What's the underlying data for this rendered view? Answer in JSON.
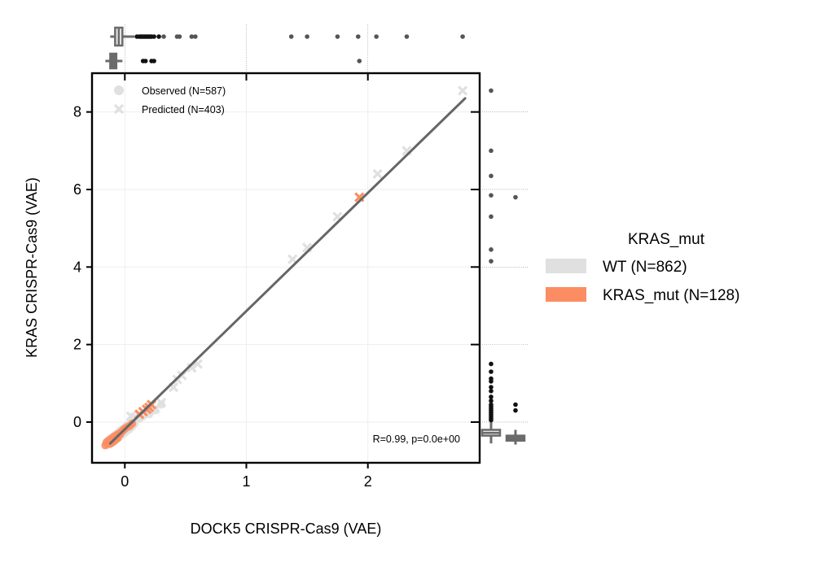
{
  "chart_data": {
    "type": "scatter",
    "xlabel": "DOCK5 CRISPR-Cas9 (VAE)",
    "ylabel": "KRAS CRISPR-Cas9 (VAE)",
    "xlim": [
      -0.27,
      2.92
    ],
    "ylim": [
      -1.05,
      9.0
    ],
    "xticks": [
      0,
      1,
      2
    ],
    "yticks": [
      0,
      2,
      4,
      6,
      8
    ],
    "marker_legend": [
      {
        "label": "Observed (N=587)",
        "marker": "circle"
      },
      {
        "label": "Predicted (N=403)",
        "marker": "x"
      }
    ],
    "hue_legend": {
      "title": "KRAS_mut",
      "entries": [
        {
          "label": "WT (N=862)",
          "color": "#e0e0e0"
        },
        {
          "label": "KRAS_mut (N=128)",
          "color": "#fc8d62"
        }
      ]
    },
    "annotation": "R=0.99, p=0.0e+00",
    "regression_line": {
      "x": [
        -0.12,
        2.8
      ],
      "y": [
        -0.55,
        8.35
      ],
      "color": "#666666"
    },
    "series": [
      {
        "name": "WT Observed",
        "marker": "circle",
        "color": "#e0e0e0",
        "points": [
          [
            -0.15,
            -0.55
          ],
          [
            -0.14,
            -0.48
          ],
          [
            -0.13,
            -0.5
          ],
          [
            -0.12,
            -0.42
          ],
          [
            -0.11,
            -0.46
          ],
          [
            -0.1,
            -0.38
          ],
          [
            -0.09,
            -0.4
          ],
          [
            -0.08,
            -0.33
          ],
          [
            -0.07,
            -0.36
          ],
          [
            -0.06,
            -0.28
          ],
          [
            -0.05,
            -0.3
          ],
          [
            -0.04,
            -0.22
          ],
          [
            -0.03,
            -0.26
          ],
          [
            -0.02,
            -0.18
          ],
          [
            -0.01,
            -0.2
          ],
          [
            0.0,
            -0.14
          ],
          [
            0.01,
            -0.1
          ],
          [
            0.02,
            -0.15
          ],
          [
            0.03,
            -0.06
          ],
          [
            0.05,
            -0.02
          ],
          [
            0.07,
            0.05
          ],
          [
            0.1,
            0.1
          ],
          [
            0.12,
            0.08
          ],
          [
            0.15,
            0.15
          ],
          [
            -0.13,
            -0.58
          ],
          [
            -0.11,
            -0.52
          ],
          [
            -0.09,
            -0.5
          ],
          [
            -0.07,
            -0.44
          ],
          [
            -0.05,
            -0.4
          ],
          [
            -0.03,
            -0.35
          ],
          [
            0.0,
            -0.28
          ],
          [
            0.02,
            -0.22
          ],
          [
            0.04,
            -0.18
          ],
          [
            0.06,
            -0.12
          ],
          [
            0.08,
            -0.05
          ],
          [
            0.2,
            0.2
          ],
          [
            0.25,
            0.3
          ],
          [
            0.3,
            0.45
          ]
        ]
      },
      {
        "name": "WT Predicted",
        "marker": "x",
        "color": "#e0e0e0",
        "points": [
          [
            0.05,
            0.15
          ],
          [
            0.08,
            0.12
          ],
          [
            0.12,
            0.2
          ],
          [
            0.2,
            0.3
          ],
          [
            0.25,
            0.35
          ],
          [
            0.3,
            0.5
          ],
          [
            0.4,
            0.9
          ],
          [
            0.43,
            1.1
          ],
          [
            0.47,
            1.2
          ],
          [
            0.55,
            1.4
          ],
          [
            0.6,
            1.5
          ],
          [
            1.38,
            4.2
          ],
          [
            1.5,
            4.5
          ],
          [
            1.75,
            5.3
          ],
          [
            2.08,
            6.4
          ],
          [
            2.32,
            7.0
          ],
          [
            2.78,
            8.55
          ]
        ]
      },
      {
        "name": "KRAS_mut Observed",
        "marker": "circle",
        "color": "#fc8d62",
        "points": [
          [
            -0.16,
            -0.6
          ],
          [
            -0.15,
            -0.52
          ],
          [
            -0.14,
            -0.56
          ],
          [
            -0.13,
            -0.47
          ],
          [
            -0.12,
            -0.5
          ],
          [
            -0.11,
            -0.43
          ],
          [
            -0.1,
            -0.46
          ],
          [
            -0.09,
            -0.38
          ],
          [
            -0.08,
            -0.41
          ],
          [
            -0.07,
            -0.34
          ],
          [
            -0.06,
            -0.36
          ],
          [
            -0.05,
            -0.3
          ],
          [
            -0.04,
            -0.32
          ],
          [
            -0.03,
            -0.26
          ],
          [
            -0.02,
            -0.23
          ],
          [
            -0.01,
            -0.2
          ],
          [
            0.0,
            -0.17
          ],
          [
            0.02,
            -0.13
          ],
          [
            0.04,
            -0.1
          ],
          [
            0.06,
            -0.04
          ],
          [
            -0.12,
            -0.56
          ],
          [
            -0.1,
            -0.52
          ],
          [
            -0.08,
            -0.47
          ],
          [
            -0.06,
            -0.42
          ]
        ]
      },
      {
        "name": "KRAS_mut Predicted",
        "marker": "x",
        "color": "#fc8d62",
        "points": [
          [
            0.12,
            0.2
          ],
          [
            0.15,
            0.27
          ],
          [
            0.18,
            0.33
          ],
          [
            0.2,
            0.38
          ],
          [
            0.22,
            0.45
          ],
          [
            1.93,
            5.8
          ]
        ]
      }
    ],
    "top_marginal": {
      "WT": {
        "q1": -0.08,
        "median": -0.05,
        "q3": -0.02,
        "whisker_low": -0.12,
        "whisker_high": 0.08,
        "fliers": [
          0.1,
          0.12,
          0.13,
          0.14,
          0.15,
          0.16,
          0.17,
          0.18,
          0.19,
          0.2,
          0.21,
          0.22,
          0.24,
          0.28,
          0.32,
          0.43,
          0.45,
          0.55,
          0.58,
          1.37,
          1.5,
          1.75,
          1.92,
          2.07,
          2.32,
          2.78
        ]
      },
      "KRAS_mut": {
        "q1": -0.12,
        "median": -0.09,
        "q3": -0.07,
        "whisker_low": -0.16,
        "whisker_high": -0.02,
        "fliers": [
          0.15,
          0.17,
          0.22,
          0.24,
          1.93
        ]
      }
    },
    "right_marginal": {
      "WT": {
        "q1": -0.35,
        "median": -0.28,
        "q3": -0.2,
        "whisker_low": -0.55,
        "whisker_high": 0.0,
        "fliers": [
          0.05,
          0.1,
          0.15,
          0.2,
          0.25,
          0.3,
          0.35,
          0.4,
          0.45,
          0.55,
          0.65,
          0.8,
          0.9,
          1.05,
          1.12,
          1.3,
          1.5,
          4.15,
          4.45,
          5.3,
          5.85,
          6.35,
          7.0,
          8.55
        ]
      },
      "KRAS_mut": {
        "q1": -0.48,
        "median": -0.4,
        "q3": -0.35,
        "whisker_low": -0.58,
        "whisker_high": -0.2,
        "fliers": [
          0.3,
          0.45,
          5.8
        ]
      }
    }
  }
}
